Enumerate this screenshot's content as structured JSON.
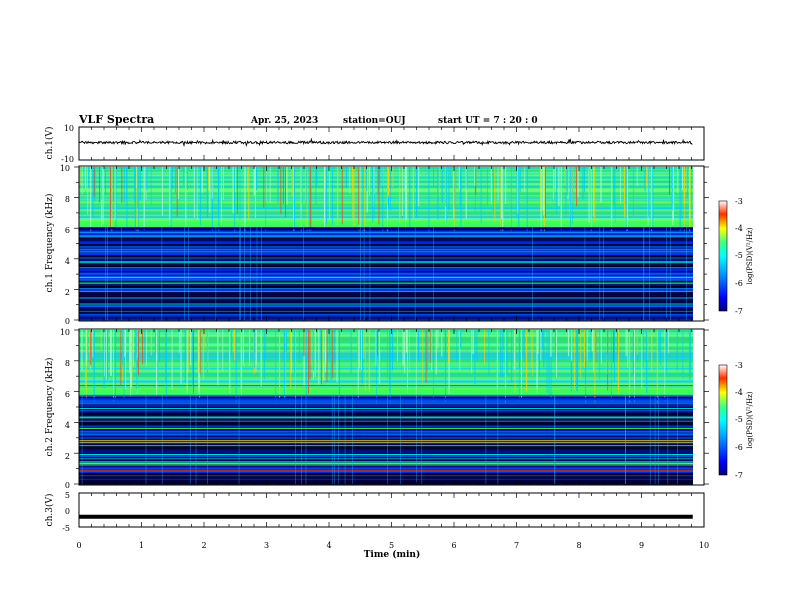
{
  "header": {
    "title": "VLF Spectra",
    "date": "Apr. 25, 2023",
    "station": "station=OUJ",
    "start": "start  UT =   7 : 20 : 0"
  },
  "chart_data": [
    {
      "type": "line",
      "ylabel": "ch.1(V)",
      "ylim": [
        -10,
        10
      ],
      "xlim": [
        0,
        10
      ],
      "yticks": [
        "10",
        "-10"
      ],
      "mean_level": 0,
      "noise_amplitude": 1,
      "data_end_min": 9.82
    },
    {
      "type": "heatmap",
      "ylabel": "ch.1 Frequency (kHz)",
      "ylim": [
        0,
        10
      ],
      "xlim": [
        0,
        10
      ],
      "yticks": [
        "0",
        "2",
        "4",
        "6",
        "8",
        "10"
      ],
      "colorbar": {
        "label": "log(PSD)(V²/Hz)",
        "range": [
          -7,
          -3
        ],
        "ticks": [
          "-3",
          "-4",
          "-5",
          "-6",
          "-7"
        ]
      },
      "broadband_boundary_khz": 6.1
    },
    {
      "type": "heatmap",
      "ylabel": "ch.2 Frequency (kHz)",
      "ylim": [
        0,
        10
      ],
      "xlim": [
        0,
        10
      ],
      "yticks": [
        "0",
        "2",
        "4",
        "6",
        "8",
        "10"
      ],
      "colorbar": {
        "label": "log(PSD)(V²/Hz)",
        "range": [
          -7,
          -3
        ],
        "ticks": [
          "-3",
          "-4",
          "-5",
          "-6",
          "-7"
        ]
      },
      "broadband_boundary_khz": 5.8,
      "band_line_khz": 6.4
    },
    {
      "type": "line",
      "ylabel": "ch.3(V)",
      "ylim": [
        -5,
        5
      ],
      "xlim": [
        0,
        10
      ],
      "yticks": [
        "5",
        "0",
        "-5"
      ],
      "mean_level": -2,
      "data_end_min": 9.82
    }
  ],
  "xaxis": {
    "label": "Time  (min)",
    "ticks": [
      "0",
      "1",
      "2",
      "3",
      "4",
      "5",
      "6",
      "7",
      "8",
      "9",
      "10"
    ]
  },
  "colors": {
    "axis": "#000000",
    "background": "#ffffff"
  }
}
